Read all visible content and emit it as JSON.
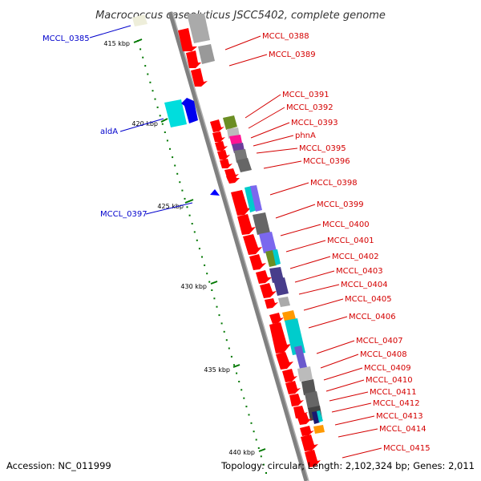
{
  "title": "Macrococcus caseolyticus JSCC5402, complete genome",
  "footer": {
    "accession": "Accession: NC_011999",
    "summary": "Topology: circular; Length: 2,102,324 bp; Genes: 2,011"
  },
  "colors": {
    "forward_gene": "#ff0000",
    "reverse_gene": "#0000ff",
    "forward_label": "#d40000",
    "reverse_label": "#0000cc",
    "tick": "#007700",
    "backbone": "#808080"
  },
  "ticks": [
    {
      "label": "415 kbp"
    },
    {
      "label": "420 kbp"
    },
    {
      "label": "425 kbp"
    },
    {
      "label": "430 kbp"
    },
    {
      "label": "435 kbp"
    },
    {
      "label": "440 kbp"
    }
  ],
  "forward_labels": [
    "MCCL_0388",
    "MCCL_0389",
    "MCCL_0391",
    "MCCL_0392",
    "MCCL_0393",
    "phnA",
    "MCCL_0395",
    "MCCL_0396",
    "MCCL_0398",
    "MCCL_0399",
    "MCCL_0400",
    "MCCL_0401",
    "MCCL_0402",
    "MCCL_0403",
    "MCCL_0404",
    "MCCL_0405",
    "MCCL_0406",
    "MCCL_0407",
    "MCCL_0408",
    "MCCL_0409",
    "MCCL_0410",
    "MCCL_0411",
    "MCCL_0412",
    "MCCL_0413",
    "MCCL_0414",
    "MCCL_0415"
  ],
  "reverse_labels": [
    "MCCL_0385",
    "aldA",
    "MCCL_0397"
  ]
}
